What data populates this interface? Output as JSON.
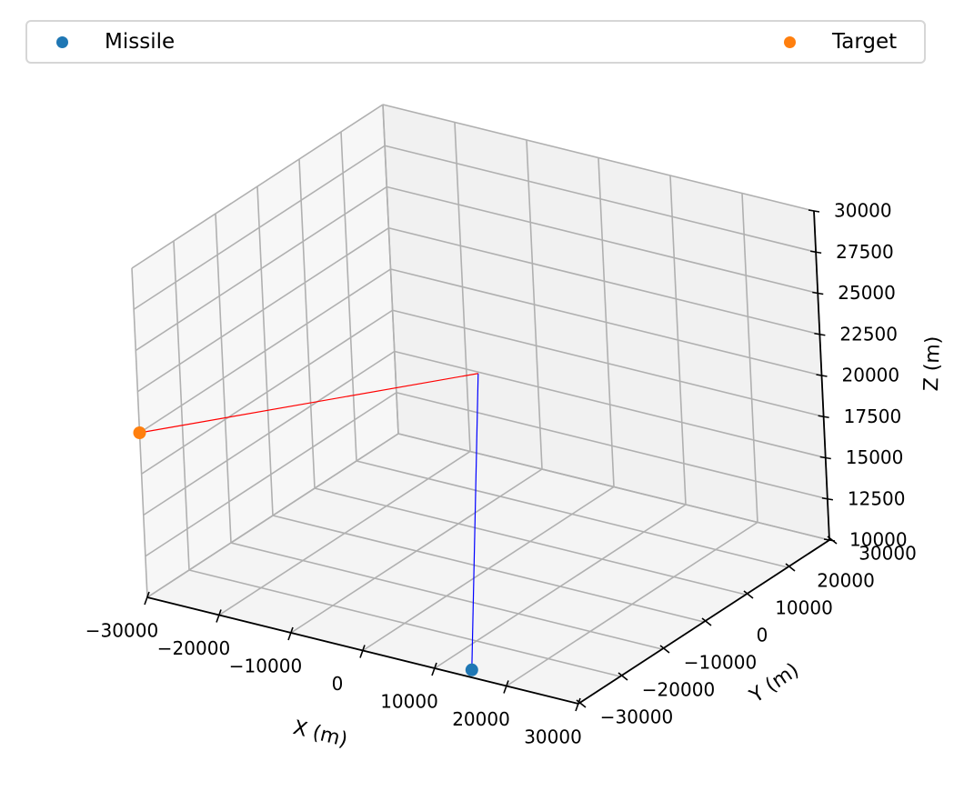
{
  "chart_data": {
    "type": "scatter",
    "projection": "3d",
    "xlabel": "X (m)",
    "ylabel": "Y (m)",
    "zlabel": "Z (m)",
    "xlim": [
      -30000,
      30000
    ],
    "ylim": [
      -30000,
      30000
    ],
    "zlim": [
      10000,
      30000
    ],
    "xticks": [
      -30000,
      -20000,
      -10000,
      0,
      10000,
      20000,
      30000
    ],
    "yticks": [
      -30000,
      -20000,
      -10000,
      0,
      10000,
      20000,
      30000
    ],
    "zticks": [
      10000,
      12500,
      15000,
      17500,
      20000,
      22500,
      25000,
      27500,
      30000
    ],
    "grid": true,
    "legend_position": "top",
    "series": [
      {
        "name": "Missile",
        "color": "#1f77b4",
        "points": [
          {
            "x": 14000,
            "y": -28000,
            "z": 10000
          }
        ]
      },
      {
        "name": "Target",
        "color": "#ff7f0e",
        "points": [
          {
            "x": -30000,
            "y": -30000,
            "z": 20000
          }
        ]
      }
    ],
    "lines": [
      {
        "color": "#0000ff",
        "from": {
          "x": 14000,
          "y": -28000,
          "z": 10000
        },
        "to": {
          "x": -5000,
          "y": 8000,
          "z": 20000
        }
      },
      {
        "color": "#ff0000",
        "from": {
          "x": -30000,
          "y": -30000,
          "z": 20000
        },
        "to": {
          "x": -5000,
          "y": 8000,
          "z": 20000
        }
      }
    ]
  }
}
